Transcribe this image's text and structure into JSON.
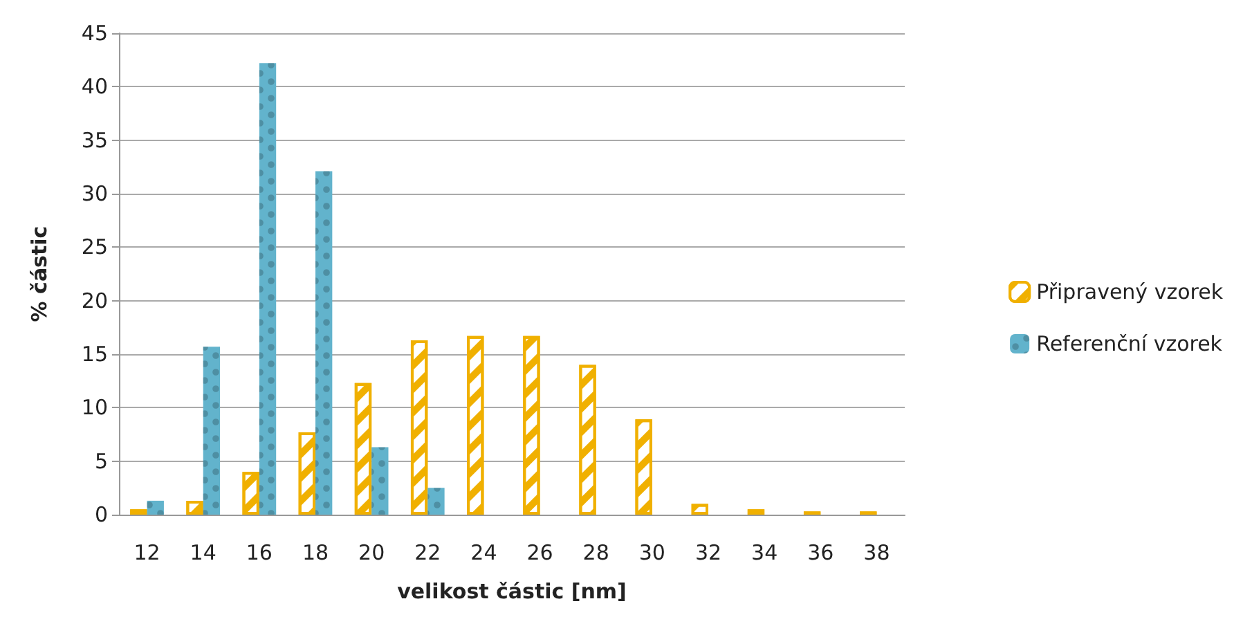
{
  "chart_data": {
    "type": "bar",
    "xlabel": "velikost částic [nm]",
    "ylabel": "% částic",
    "categories": [
      "12",
      "14",
      "16",
      "18",
      "20",
      "22",
      "24",
      "26",
      "28",
      "30",
      "32",
      "34",
      "36",
      "38"
    ],
    "series": [
      {
        "name": "Připravený vzorek",
        "color": "#f0b000",
        "values": [
          0.5,
          1.3,
          4.0,
          7.7,
          12.3,
          16.3,
          16.7,
          16.7,
          14.0,
          8.9,
          1.0,
          0.5,
          0.3,
          0.3
        ]
      },
      {
        "name": "Referenční vzorek",
        "color": "#62b3cc",
        "values": [
          1.3,
          15.7,
          42.2,
          32.1,
          6.3,
          2.5,
          null,
          null,
          null,
          null,
          null,
          null,
          null,
          null
        ]
      }
    ],
    "ylim": [
      0,
      45
    ],
    "yticks": [
      0,
      5,
      10,
      15,
      20,
      25,
      30,
      35,
      40,
      45
    ],
    "grid": "y",
    "legend": "right"
  }
}
